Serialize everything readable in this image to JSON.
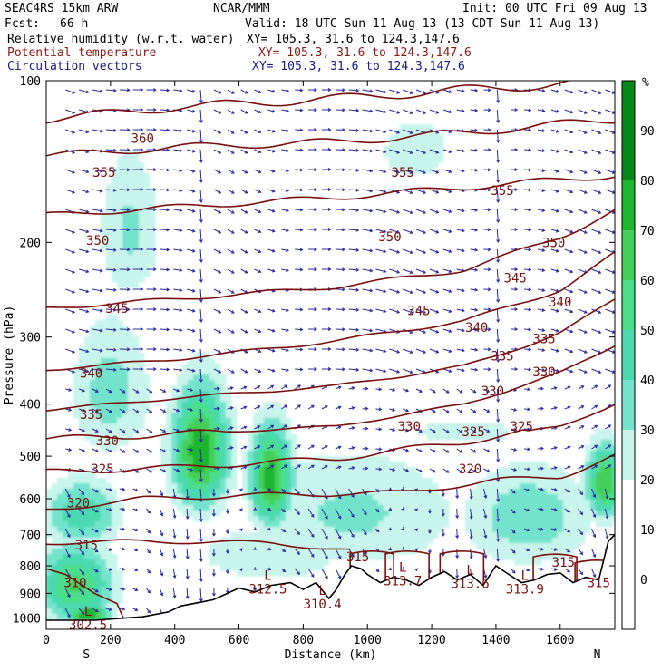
{
  "header": {
    "model": "SEAC4RS 15km ARW",
    "org": "NCAR/MMM",
    "init": "Init: 00 UTC Fri 09 Aug 13",
    "fcst_label": "Fcst:",
    "fcst_value": "66 h",
    "valid": "Valid: 18 UTC Sun 11 Aug 13 (13 CDT Sun 11 Aug 13)",
    "fields": [
      {
        "name": "Relative humidity (w.r.t. water)",
        "xy": "XY= 105.3, 31.6 to 124.3,147.6",
        "color": "#000000"
      },
      {
        "name": "Potential temperature",
        "xy": "XY= 105.3, 31.6 to 124.3,147.6",
        "color": "#8b1a1a"
      },
      {
        "name": "Circulation vectors",
        "xy": "XY= 105.3, 31.6 to 124.3,147.6",
        "color": "#1a1a8c"
      }
    ]
  },
  "chart_data": {
    "type": "heatmap",
    "xlabel": "Distance (km)",
    "ylabel": "Pressure (hPa)",
    "xlim": [
      0,
      1770
    ],
    "ylim": [
      1050,
      100
    ],
    "y_log_scale": true,
    "xticks": [
      0,
      200,
      400,
      600,
      800,
      1000,
      1200,
      1400,
      1600
    ],
    "yticks": [
      100,
      200,
      300,
      400,
      500,
      600,
      700,
      800,
      900,
      1000
    ],
    "x_end_labels": {
      "left": "S",
      "right": "N"
    },
    "colorbar": {
      "unit": "%",
      "levels": [
        0,
        10,
        20,
        30,
        40,
        50,
        60,
        70,
        80,
        90
      ],
      "colors": [
        "#ffffff",
        "#ffffff",
        "#ffffff",
        "#c8f5ec",
        "#73e4cb",
        "#4cd9b0",
        "#4bdf8c",
        "#45cf5a",
        "#1fb62d",
        "#07861a"
      ]
    },
    "rh_blobs": [
      {
        "x": 480,
        "p": 490,
        "rx": 120,
        "rp": 170,
        "rh": 88
      },
      {
        "x": 700,
        "p": 550,
        "rx": 90,
        "rp": 160,
        "rh": 85
      },
      {
        "x": 200,
        "p": 380,
        "rx": 180,
        "rp": 160,
        "rh": 45
      },
      {
        "x": 110,
        "p": 640,
        "rx": 160,
        "rp": 130,
        "rh": 58
      },
      {
        "x": 90,
        "p": 870,
        "rx": 160,
        "rp": 200,
        "rh": 72
      },
      {
        "x": 130,
        "p": 985,
        "rx": 90,
        "rp": 60,
        "rh": 90
      },
      {
        "x": 950,
        "p": 640,
        "rx": 500,
        "rp": 240,
        "rh": 42
      },
      {
        "x": 1500,
        "p": 650,
        "rx": 280,
        "rp": 200,
        "rh": 48
      },
      {
        "x": 1740,
        "p": 560,
        "rx": 80,
        "rp": 120,
        "rh": 80
      },
      {
        "x": 700,
        "p": 760,
        "rx": 380,
        "rp": 150,
        "rh": 38
      },
      {
        "x": 260,
        "p": 190,
        "rx": 140,
        "rp": 90,
        "rh": 42
      },
      {
        "x": 1150,
        "p": 135,
        "rx": 240,
        "rp": 40,
        "rh": 34
      },
      {
        "x": 1300,
        "p": 450,
        "rx": 500,
        "rp": 70,
        "rh": 32
      }
    ],
    "isentropes": [
      {
        "theta": 360,
        "x": [
          0,
          400,
          900,
          1300,
          1770
        ],
        "p": [
          118,
          112,
          108,
          104,
          100
        ]
      },
      {
        "theta": 355,
        "x": [
          0,
          400,
          900,
          1300,
          1770
        ],
        "p": [
          138,
          133,
          130,
          125,
          118
        ]
      },
      {
        "theta": 350,
        "x": [
          0,
          400,
          900,
          1300,
          1770
        ],
        "p": [
          178,
          172,
          165,
          158,
          150
        ]
      },
      {
        "theta": 345,
        "x": [
          0,
          400,
          900,
          1300,
          1600,
          1770
        ],
        "p": [
          265,
          255,
          242,
          225,
          195,
          175
        ]
      },
      {
        "theta": 340,
        "x": [
          0,
          400,
          900,
          1300,
          1600,
          1770
        ],
        "p": [
          345,
          330,
          305,
          280,
          245,
          210
        ]
      },
      {
        "theta": 335,
        "x": [
          0,
          400,
          900,
          1300,
          1600,
          1770
        ],
        "p": [
          410,
          390,
          370,
          340,
          295,
          255
        ]
      },
      {
        "theta": 330,
        "x": [
          0,
          400,
          900,
          1300,
          1600,
          1770
        ],
        "p": [
          465,
          455,
          440,
          400,
          350,
          310
        ]
      },
      {
        "theta": 325,
        "x": [
          0,
          400,
          900,
          1300,
          1600,
          1770
        ],
        "p": [
          535,
          525,
          505,
          470,
          440,
          400
        ]
      },
      {
        "theta": 320,
        "x": [
          0,
          300,
          700,
          1100,
          1400,
          1600,
          1770
        ],
        "p": [
          630,
          600,
          590,
          585,
          555,
          545,
          500
        ]
      },
      {
        "theta": 315,
        "x": [
          0,
          300,
          700,
          950
        ],
        "p": [
          725,
          720,
          725,
          750
        ]
      }
    ],
    "theta_labels": [
      {
        "text": "360",
        "x": 300,
        "p": 128
      },
      {
        "text": "355",
        "x": 180,
        "p": 148
      },
      {
        "text": "355",
        "x": 1110,
        "p": 148
      },
      {
        "text": "355",
        "x": 1420,
        "p": 160
      },
      {
        "text": "350",
        "x": 160,
        "p": 198
      },
      {
        "text": "350",
        "x": 1070,
        "p": 195
      },
      {
        "text": "350",
        "x": 1580,
        "p": 200
      },
      {
        "text": "345",
        "x": 220,
        "p": 265
      },
      {
        "text": "345",
        "x": 1160,
        "p": 268
      },
      {
        "text": "345",
        "x": 1460,
        "p": 233
      },
      {
        "text": "340",
        "x": 140,
        "p": 350
      },
      {
        "text": "340",
        "x": 1340,
        "p": 288
      },
      {
        "text": "340",
        "x": 1600,
        "p": 258
      },
      {
        "text": "335",
        "x": 140,
        "p": 418
      },
      {
        "text": "335",
        "x": 1420,
        "p": 325
      },
      {
        "text": "335",
        "x": 1550,
        "p": 302
      },
      {
        "text": "330",
        "x": 190,
        "p": 468
      },
      {
        "text": "330",
        "x": 1130,
        "p": 440
      },
      {
        "text": "330",
        "x": 1390,
        "p": 378
      },
      {
        "text": "330",
        "x": 1550,
        "p": 348
      },
      {
        "text": "325",
        "x": 175,
        "p": 528
      },
      {
        "text": "325",
        "x": 1330,
        "p": 450
      },
      {
        "text": "325",
        "x": 1480,
        "p": 440
      },
      {
        "text": "320",
        "x": 100,
        "p": 610
      },
      {
        "text": "320",
        "x": 1320,
        "p": 528
      },
      {
        "text": "315",
        "x": 125,
        "p": 732
      },
      {
        "text": "315",
        "x": 970,
        "p": 770
      },
      {
        "text": "315",
        "x": 1610,
        "p": 788
      },
      {
        "text": "310",
        "x": 90,
        "p": 860
      },
      {
        "text": "315",
        "x": 1720,
        "p": 860
      }
    ],
    "lows": [
      {
        "label": "L",
        "value": "302.5",
        "x": 130,
        "p": 990
      },
      {
        "label": "L",
        "value": "312.5",
        "x": 690,
        "p": 850
      },
      {
        "label": "L",
        "value": "310.4",
        "x": 860,
        "p": 905
      },
      {
        "label": "L",
        "value": "313.7",
        "x": 1110,
        "p": 820
      },
      {
        "label": "L",
        "value": "313.6",
        "x": 1320,
        "p": 830
      },
      {
        "label": "L",
        "value": "313.9",
        "x": 1490,
        "p": 850
      }
    ],
    "terrain": {
      "x": [
        0,
        150,
        300,
        380,
        420,
        480,
        520,
        600,
        650,
        700,
        760,
        800,
        840,
        880,
        900,
        930,
        950,
        980,
        1000,
        1040,
        1080,
        1120,
        1160,
        1200,
        1240,
        1280,
        1320,
        1360,
        1400,
        1440,
        1480,
        1520,
        1560,
        1600,
        1640,
        1680,
        1720,
        1750,
        1770
      ],
      "p": [
        1010,
        1010,
        995,
        975,
        950,
        935,
        925,
        880,
        895,
        870,
        860,
        885,
        860,
        920,
        890,
        830,
        800,
        810,
        830,
        860,
        840,
        850,
        870,
        840,
        820,
        850,
        830,
        870,
        800,
        830,
        860,
        850,
        830,
        825,
        860,
        840,
        850,
        720,
        700
      ]
    }
  }
}
